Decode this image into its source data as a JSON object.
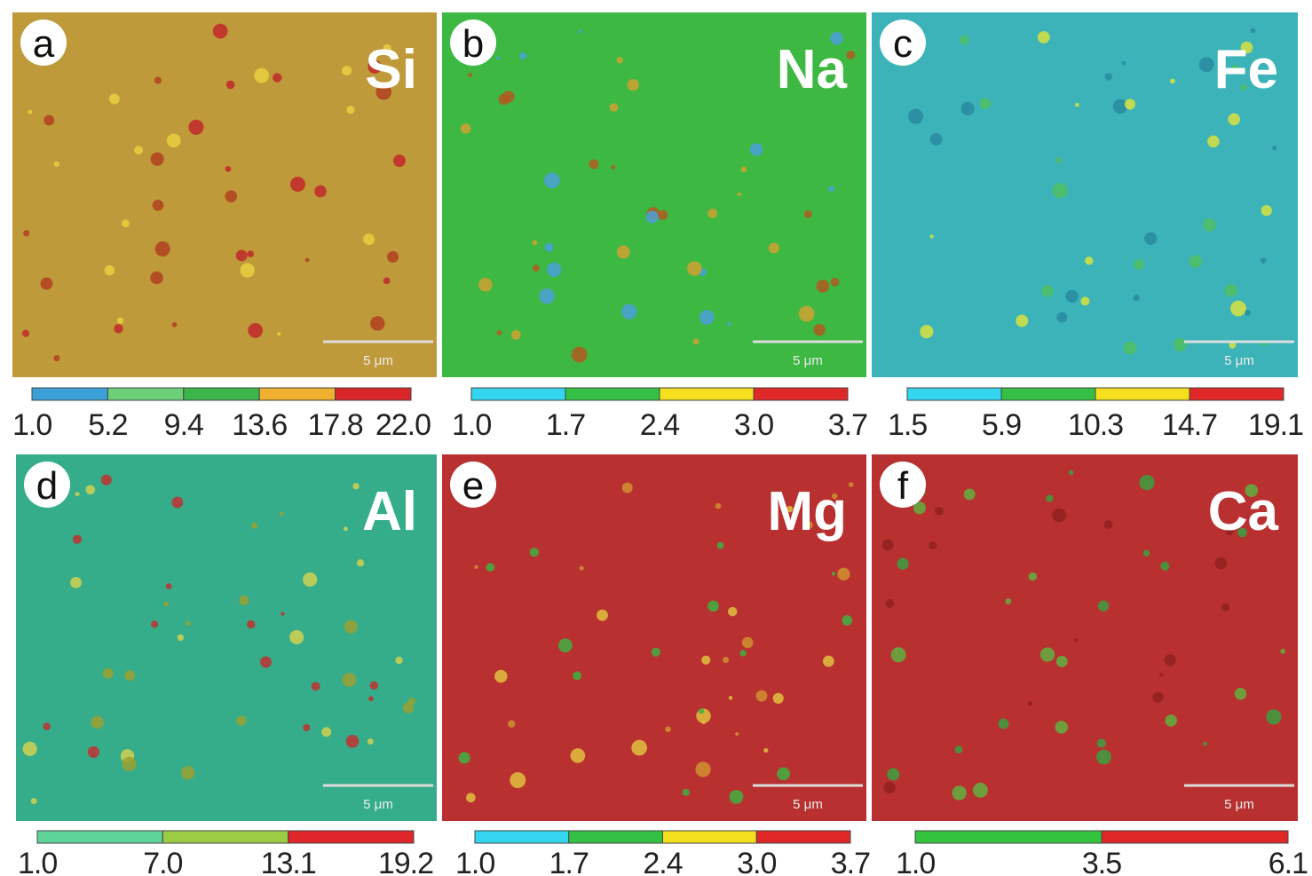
{
  "panels": [
    {
      "letter": "a",
      "element": "Si",
      "background": "#bf9a3a",
      "dot_colors": [
        "#c0282a",
        "#e8d040",
        "#b04020"
      ],
      "scale_label": "5 μm",
      "colorbar": {
        "colors": [
          "#3ba0d8",
          "#6ccf7a",
          "#3cb54a",
          "#f0b030",
          "#d8262a"
        ],
        "ticks": [
          "1.0",
          "5.2",
          "9.4",
          "13.6",
          "17.8",
          "22.0"
        ]
      }
    },
    {
      "letter": "b",
      "element": "Na",
      "background": "#3db843",
      "dot_colors": [
        "#d0a030",
        "#b05a20",
        "#4aa0d8"
      ],
      "scale_label": "5 μm",
      "colorbar": {
        "colors": [
          "#33d6ee",
          "#33c045",
          "#f5e020",
          "#e02828"
        ],
        "ticks": [
          "1.0",
          "1.7",
          "2.4",
          "3.0",
          "3.7"
        ]
      }
    },
    {
      "letter": "c",
      "element": "Fe",
      "background": "#3bb3b8",
      "dot_colors": [
        "#2a8aa0",
        "#d8e040",
        "#50c060"
      ],
      "scale_label": "5 μm",
      "colorbar": {
        "colors": [
          "#33d6ee",
          "#33c045",
          "#f5e020",
          "#e02828"
        ],
        "ticks": [
          "1.5",
          "5.9",
          "10.3",
          "14.7",
          "19.1"
        ]
      }
    },
    {
      "letter": "d",
      "element": "Al",
      "background": "#35ad8a",
      "dot_colors": [
        "#9aa030",
        "#d0d050",
        "#c03030"
      ],
      "scale_label": "5 μm",
      "colorbar": {
        "colors": [
          "#5fd49a",
          "#9ccc44",
          "#e0262a"
        ],
        "ticks": [
          "1.0",
          "7.0",
          "13.1",
          "19.2"
        ]
      }
    },
    {
      "letter": "e",
      "element": "Mg",
      "background": "#b83030",
      "dot_colors": [
        "#e0c040",
        "#40b040",
        "#d09030"
      ],
      "scale_label": "5 μm",
      "colorbar": {
        "colors": [
          "#33d6ee",
          "#33c045",
          "#f5e020",
          "#e02828"
        ],
        "ticks": [
          "1.0",
          "1.7",
          "2.4",
          "3.0",
          "3.7"
        ]
      }
    },
    {
      "letter": "f",
      "element": "Ca",
      "background": "#b83030",
      "dot_colors": [
        "#3aa040",
        "#60b040",
        "#902020"
      ],
      "scale_label": "5 μm",
      "colorbar": {
        "colors": [
          "#33c33f",
          "#e02828"
        ],
        "ticks": [
          "1.0",
          "3.5",
          "6.1"
        ]
      }
    }
  ]
}
